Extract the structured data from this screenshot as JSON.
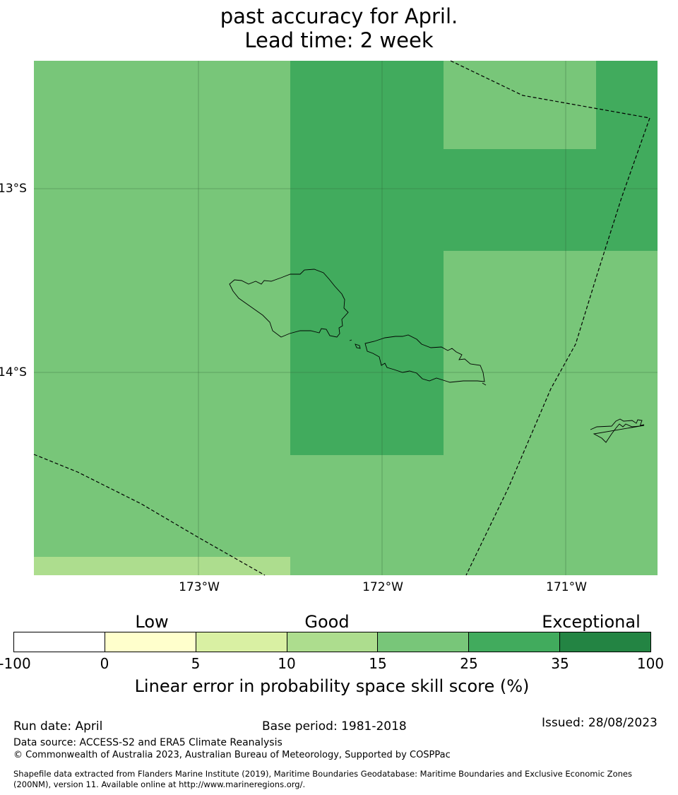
{
  "title": {
    "line1": "past accuracy for April.",
    "line2": "Lead time: 2 week"
  },
  "map": {
    "lat_labels": [
      "13°S",
      "14°S"
    ],
    "lon_labels": [
      "173°W",
      "172°W",
      "171°W"
    ],
    "extent": {
      "lon_min": -173.9,
      "lon_max": -170.5,
      "lat_min": -15.1,
      "lat_max": -12.3
    },
    "grid_cells": [
      {
        "value_range": "15-25",
        "color": "#78c679"
      },
      {
        "value_range": "25-35",
        "color": "#41ab5d"
      },
      {
        "value_range": "10-15",
        "color": "#addd8e"
      }
    ],
    "islands": [
      "Savai'i",
      "Upolu",
      "Tutuila"
    ],
    "eez_boundary_style": "dashed"
  },
  "colorbar": {
    "categories": [
      "Low",
      "Good",
      "Exceptional"
    ],
    "ticks": [
      "-100",
      "0",
      "5",
      "10",
      "15",
      "25",
      "35",
      "100"
    ],
    "colors": [
      "#ffffff",
      "#ffffcc",
      "#d9f0a3",
      "#addd8e",
      "#78c679",
      "#41ab5d",
      "#238443"
    ],
    "label": "Linear error in probability space skill score (%)"
  },
  "footer": {
    "run_date": "Run date: April",
    "base_period": "Base period: 1981-2018",
    "issued": "Issued: 28/08/2023",
    "data_source": "Data source: ACCESS-S2 and ERA5 Climate Reanalysis",
    "copyright": "© Commonwealth of Australia 2023, Australian Bureau of Meteorology, Supported by COSPPac",
    "shapefile_line1": "Shapefile data extracted from Flanders Marine Institute (2019), Maritime Boundaries Geodatabase: Maritime Boundaries and Exclusive Economic Zones",
    "shapefile_line2": "(200NM), version 11. Available online at http://www.marineregions.org/."
  }
}
